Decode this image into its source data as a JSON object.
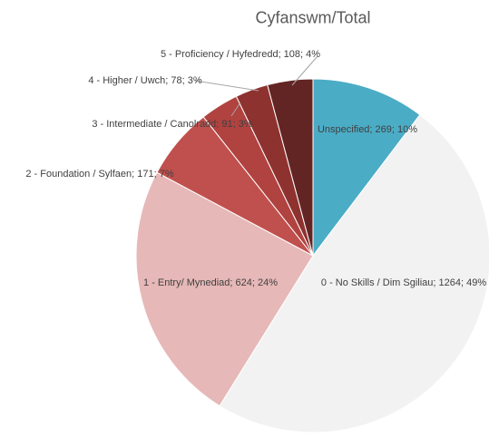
{
  "chart_data": {
    "type": "pie",
    "title": "Cyfanswm/Total",
    "values": [
      269,
      1264,
      624,
      171,
      91,
      78,
      108
    ],
    "value_labels": [
      "Unspecified; 269; 10%",
      "0 - No Skills / Dim Sgiliau; 1264; 49%",
      "1 - Entry/ Mynediad; 624; 24%",
      "2 - Foundation / Sylfaen; 171; 7%",
      "3 - Intermediate / Canolradd; 91; 3%",
      "4 - Higher / Uwch; 78; 3%",
      "5 - Proficiency / Hyfedredd; 108; 4%"
    ],
    "colors": [
      "#4bacc6",
      "#f2f2f2",
      "#e6b8b7",
      "#c0504d",
      "#b0423f",
      "#8e3230",
      "#632523"
    ]
  }
}
